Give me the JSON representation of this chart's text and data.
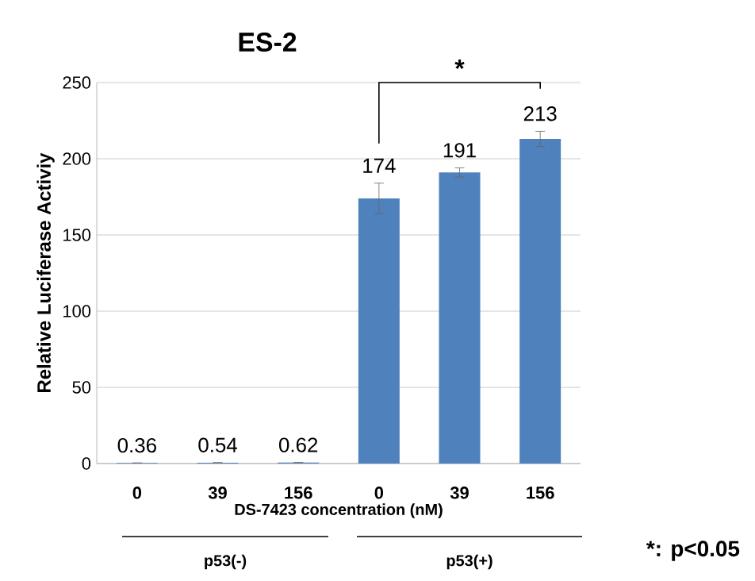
{
  "chart_data": {
    "type": "bar",
    "title": "ES-2",
    "xlabel": "DS-7423 concentration (nM)",
    "ylabel": "Relative Luciferase Activiy",
    "categories": [
      "0",
      "39",
      "156",
      "0",
      "39",
      "156"
    ],
    "values": [
      0.36,
      0.54,
      0.62,
      174,
      191,
      213
    ],
    "errors": [
      null,
      null,
      null,
      10,
      3,
      5
    ],
    "color": "#4f81bd",
    "ylim": [
      0,
      250
    ],
    "yticks": [
      0,
      50,
      100,
      150,
      200,
      250
    ],
    "grid": "y",
    "data_labels": true,
    "annotations": [
      "*",
      "p53(-)",
      "p53(+)",
      "*: p<0.05"
    ]
  }
}
